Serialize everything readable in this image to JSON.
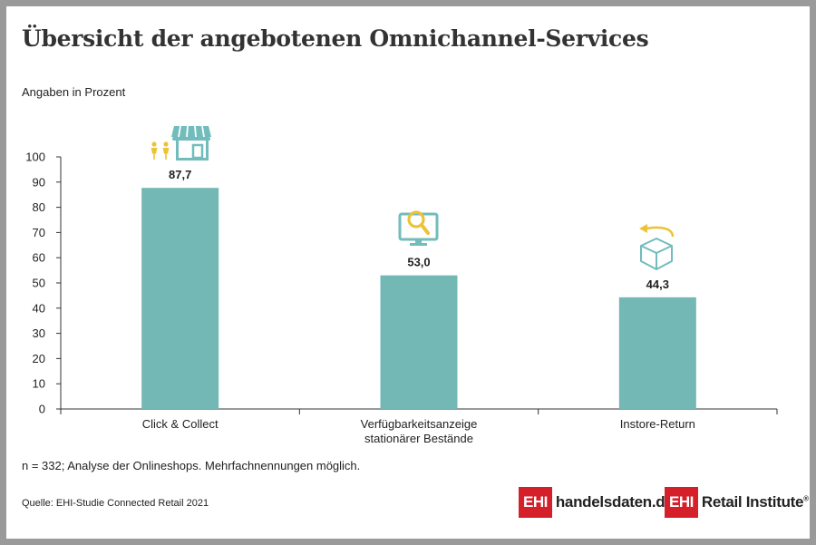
{
  "header": {
    "title": "Übersicht der angebotenen Omnichannel-Services",
    "subtitle": "Angaben in Prozent"
  },
  "footer": {
    "note": "n = 332; Analyse der Onlineshops. Mehrfachnennungen möglich.",
    "source": "Quelle: EHI-Studie Connected Retail 2021"
  },
  "logos": [
    {
      "box": "EHI",
      "text": "handelsdaten.de",
      "sup": ""
    },
    {
      "box": "EHI",
      "text": "Retail Institute",
      "sup": "®"
    }
  ],
  "colors": {
    "bar": "#74b8b5",
    "icon_teal": "#72bcbc",
    "icon_yellow": "#ecc338",
    "axis": "#333333",
    "background": "#ffffff",
    "frame": "#9a9a9a",
    "brand_red": "#d5202a"
  },
  "icons": [
    "people-store-icon",
    "monitor-search-icon",
    "box-return-icon"
  ],
  "chart_data": {
    "type": "bar",
    "categories": [
      [
        "Click & Collect"
      ],
      [
        "Verfügbarkeitsanzeige",
        "stationärer Bestände"
      ],
      [
        "Instore-Return"
      ]
    ],
    "values": [
      87.7,
      53.0,
      44.3
    ],
    "value_labels": [
      "87,7",
      "53,0",
      "44,3"
    ],
    "ylabel": "Angaben in Prozent",
    "ylim": [
      0,
      100
    ],
    "yticks": [
      0,
      10,
      20,
      30,
      40,
      50,
      60,
      70,
      80,
      90,
      100
    ],
    "grid": false,
    "legend": "none"
  }
}
